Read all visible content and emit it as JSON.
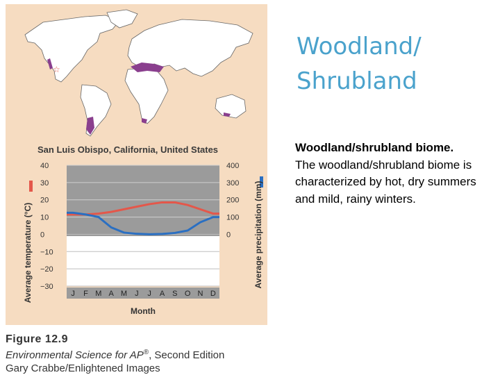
{
  "slide": {
    "title_line1": "Woodland/",
    "title_line2": "Shrubland",
    "body_heading": "Woodland/shrubland biome.",
    "body_text": "The woodland/shrubland biome is characterized by hot, dry summers and mild, rainy winters."
  },
  "caption": {
    "figure": "Figure 12.9",
    "book_title": "Environmental Science for AP",
    "book_suffix": ", Second Edition",
    "credit": "Gary Crabbe/Enlightened Images"
  },
  "colors": {
    "panel": "#f6dcc1",
    "title": "#4aa2cc",
    "temperature": "#e4574a",
    "precipitation": "#2a6fc2",
    "biome_region": "#8a3f8e",
    "plot_band": "#9b9b9b"
  },
  "chart_data": {
    "type": "line",
    "title": "San Luis Obispo, California, United States",
    "xlabel": "Month",
    "categories": [
      "J",
      "F",
      "M",
      "A",
      "M",
      "J",
      "J",
      "A",
      "S",
      "O",
      "N",
      "D"
    ],
    "ylabel_left": "Average temperature (°C)",
    "ylabel_right": "Average precipitation (mm)",
    "ylim_left": [
      -30,
      40
    ],
    "yticks_left": [
      "40",
      "30",
      "20",
      "10",
      "0",
      "−10",
      "−20",
      "−30"
    ],
    "ylim_right": [
      0,
      400
    ],
    "yticks_right": [
      "400",
      "300",
      "200",
      "100",
      "0"
    ],
    "grid": true,
    "series": [
      {
        "name": "Average temperature",
        "axis": "left",
        "values": [
          11.5,
          11.5,
          12,
          13,
          14.5,
          16,
          17.5,
          18.5,
          18.5,
          17,
          14.5,
          12
        ]
      },
      {
        "name": "Average precipitation",
        "axis": "right",
        "values": [
          125,
          115,
          100,
          40,
          10,
          3,
          0,
          2,
          8,
          22,
          70,
          100
        ]
      }
    ]
  }
}
